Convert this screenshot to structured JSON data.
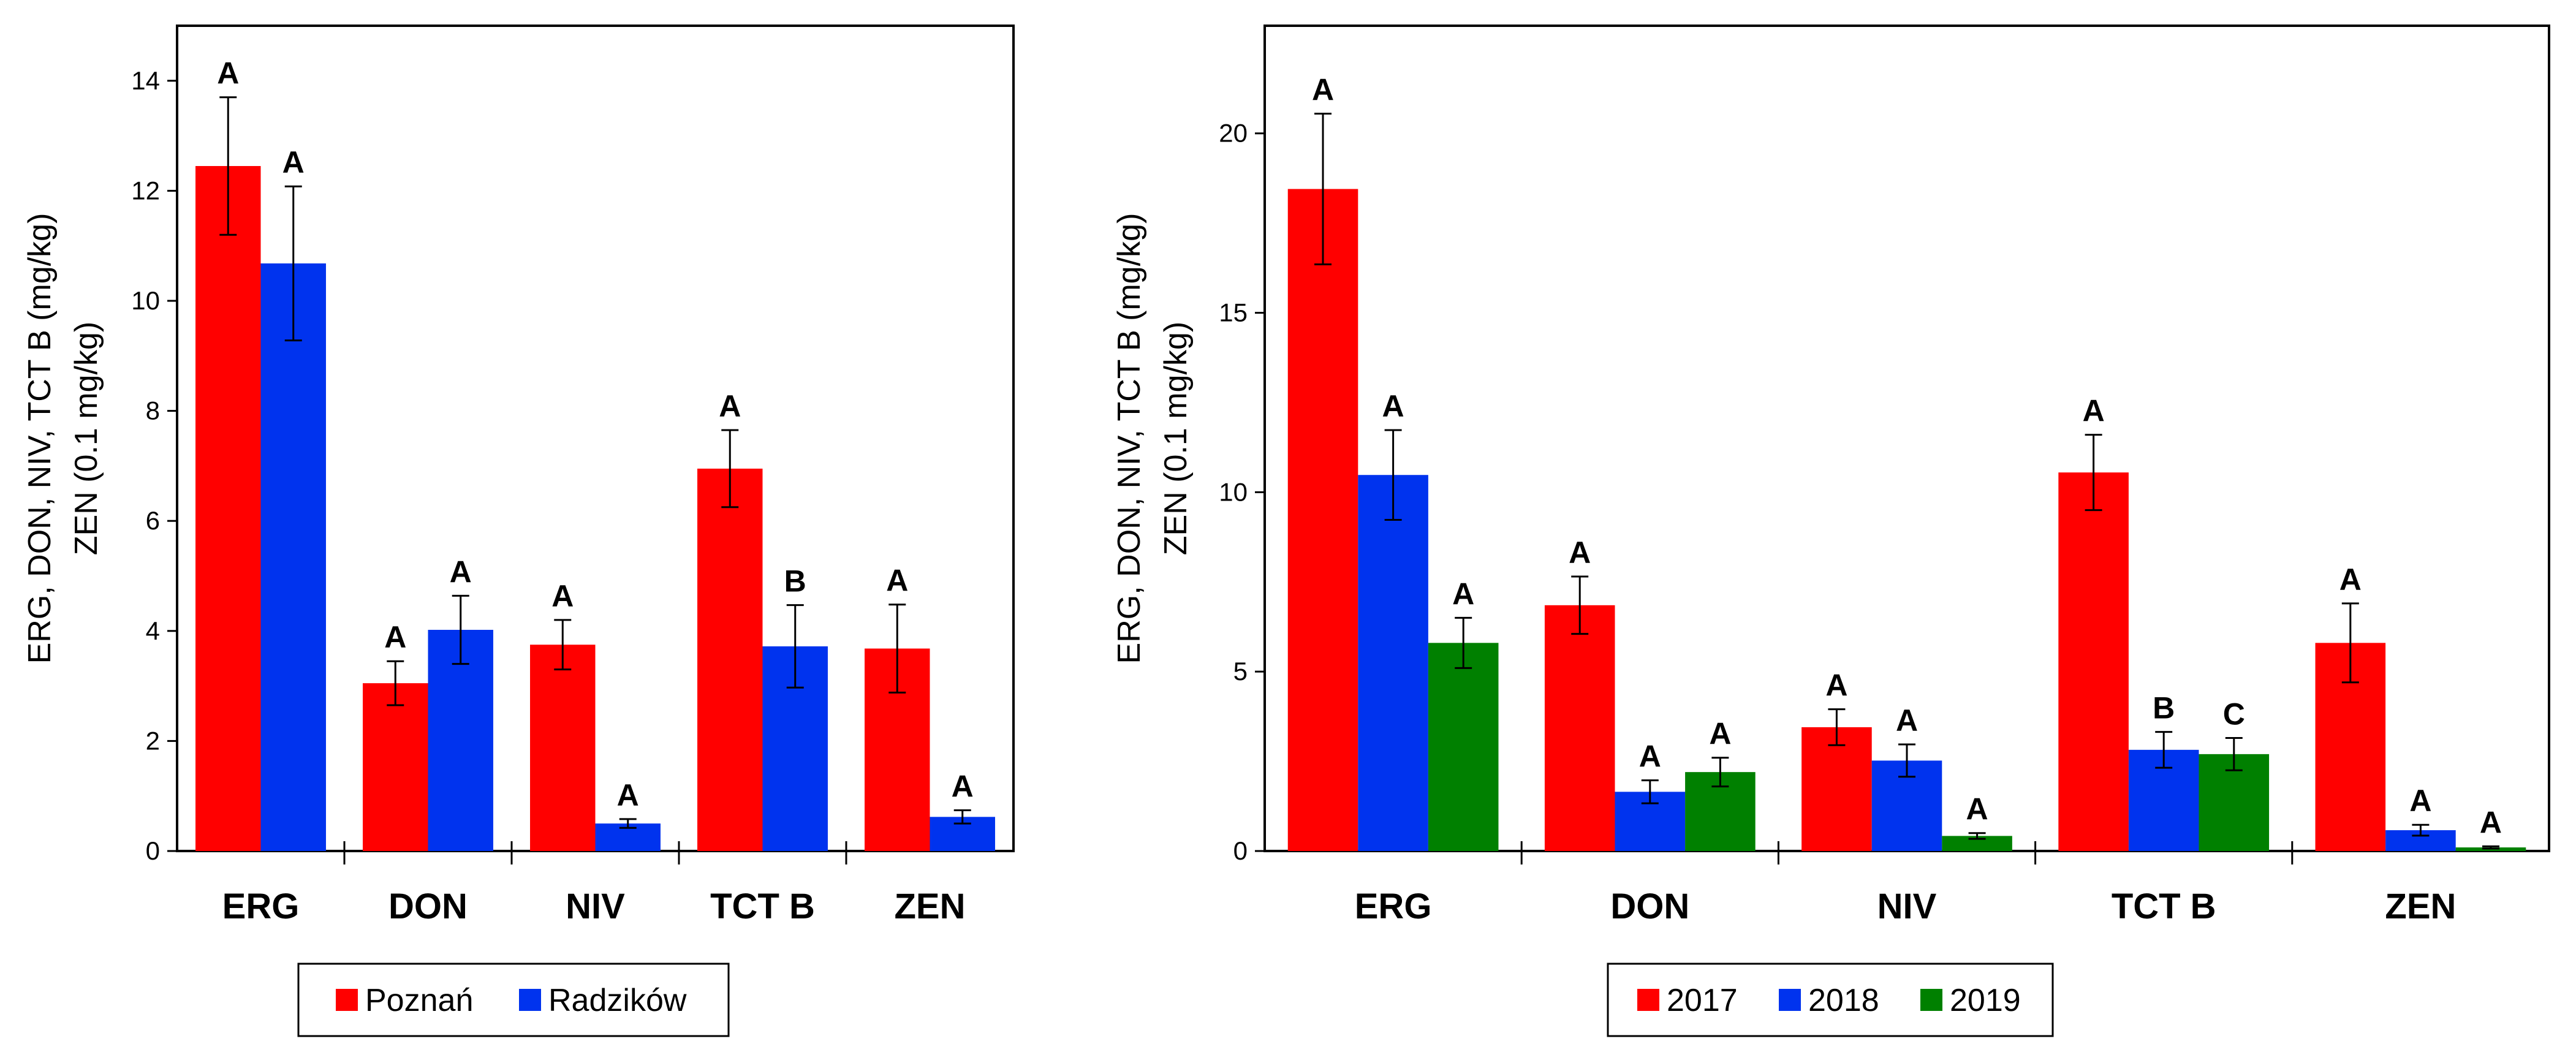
{
  "colors": {
    "poznan": "#ff0000",
    "radzikow": "#0033ee",
    "y2017": "#ff0000",
    "y2018": "#0033ee",
    "y2019": "#008000"
  },
  "chart_data": [
    {
      "type": "bar",
      "categories": [
        "ERG",
        "DON",
        "NIV",
        "TCT B",
        "ZEN"
      ],
      "ylabel_line1": "ERG, DON, NIV, TCT B (mg/kg)",
      "ylabel_line2": "ZEN (0.1 mg/kg)",
      "ylim": [
        0,
        15
      ],
      "yticks": [
        0,
        2,
        4,
        6,
        8,
        10,
        12,
        14
      ],
      "ytick_labels": [
        "0",
        "2",
        "4",
        "6",
        "8",
        "10",
        "12",
        "14"
      ],
      "legend_position": "bottom",
      "series": [
        {
          "name": "Poznań",
          "color_key": "poznan",
          "values": [
            12.45,
            3.05,
            3.75,
            6.95,
            3.68
          ],
          "errors": [
            1.25,
            0.4,
            0.45,
            0.7,
            0.8
          ],
          "significance": [
            "A",
            "A",
            "A",
            "A",
            "A"
          ]
        },
        {
          "name": "Radzików",
          "color_key": "radzikow",
          "values": [
            10.68,
            4.02,
            0.5,
            3.72,
            0.62
          ],
          "errors": [
            1.4,
            0.62,
            0.08,
            0.75,
            0.12
          ],
          "significance": [
            "A",
            "A",
            "A",
            "B",
            "A"
          ]
        }
      ]
    },
    {
      "type": "bar",
      "categories": [
        "ERG",
        "DON",
        "NIV",
        "TCT B",
        "ZEN"
      ],
      "ylabel_line1": "ERG, DON, NIV, TCT B (mg/kg)",
      "ylabel_line2": "ZEN (0.1 mg/kg)",
      "ylim": [
        0,
        23
      ],
      "yticks": [
        0,
        5,
        10,
        15,
        20
      ],
      "ytick_labels": [
        "0",
        "5",
        "10",
        "15",
        "20"
      ],
      "legend_position": "bottom",
      "series": [
        {
          "name": "2017",
          "color_key": "y2017",
          "values": [
            18.45,
            6.85,
            3.45,
            10.55,
            5.8
          ],
          "errors": [
            2.1,
            0.8,
            0.5,
            1.05,
            1.1
          ],
          "significance": [
            "A",
            "A",
            "A",
            "A",
            "A"
          ]
        },
        {
          "name": "2018",
          "color_key": "y2018",
          "values": [
            10.48,
            1.65,
            2.52,
            2.82,
            0.58
          ],
          "errors": [
            1.25,
            0.32,
            0.45,
            0.5,
            0.15
          ],
          "significance": [
            "A",
            "A",
            "A",
            "B",
            "A"
          ]
        },
        {
          "name": "2019",
          "color_key": "y2019",
          "values": [
            5.8,
            2.2,
            0.42,
            2.7,
            0.1
          ],
          "errors": [
            0.7,
            0.4,
            0.08,
            0.45,
            0.03
          ],
          "significance": [
            "A",
            "A",
            "A",
            "C",
            "A"
          ]
        }
      ]
    }
  ]
}
